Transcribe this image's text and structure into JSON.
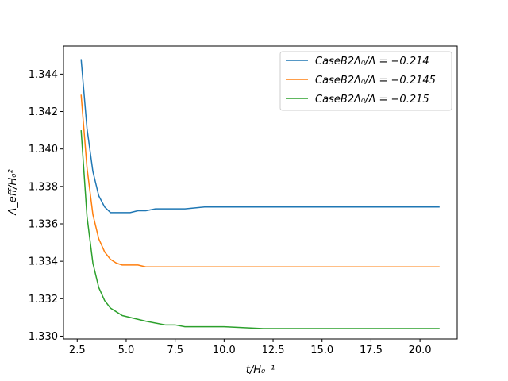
{
  "chart_data": {
    "type": "line",
    "title": "",
    "xlabel": "t/H₀⁻¹",
    "ylabel": "Λ_eff/H₀²",
    "xlim": [
      1.8,
      21.9
    ],
    "ylim": [
      1.32985,
      1.3455
    ],
    "xticks": [
      2.5,
      5.0,
      7.5,
      10.0,
      12.5,
      15.0,
      17.5,
      20.0
    ],
    "xtick_labels": [
      "2.5",
      "5.0",
      "7.5",
      "10.0",
      "12.5",
      "15.0",
      "17.5",
      "20.0"
    ],
    "yticks": [
      1.33,
      1.332,
      1.334,
      1.336,
      1.338,
      1.34,
      1.342,
      1.344
    ],
    "ytick_labels": [
      "1.330",
      "1.332",
      "1.334",
      "1.336",
      "1.338",
      "1.340",
      "1.342",
      "1.344"
    ],
    "grid": false,
    "legend_position": "top-right",
    "series": [
      {
        "name": "CaseB2Λ₀/Λ = −0.214",
        "color": "#1f77b4",
        "x": [
          2.7,
          3.0,
          3.3,
          3.6,
          3.9,
          4.2,
          4.5,
          4.8,
          5.2,
          5.6,
          6.0,
          6.5,
          7.0,
          7.5,
          8.0,
          9.0,
          10.0,
          12.0,
          14.0,
          16.0,
          18.0,
          21.0
        ],
        "y": [
          1.3448,
          1.3411,
          1.3388,
          1.3375,
          1.3369,
          1.3366,
          1.3366,
          1.3366,
          1.3366,
          1.3367,
          1.3367,
          1.3368,
          1.3368,
          1.3368,
          1.3368,
          1.3369,
          1.3369,
          1.3369,
          1.3369,
          1.3369,
          1.3369,
          1.3369
        ]
      },
      {
        "name": "CaseB2Λ₀/Λ = −0.2145",
        "color": "#ff7f0e",
        "x": [
          2.7,
          3.0,
          3.3,
          3.6,
          3.9,
          4.2,
          4.5,
          4.8,
          5.2,
          5.6,
          6.0,
          6.5,
          7.0,
          8.0,
          9.0,
          10.0,
          12.0,
          14.0,
          16.0,
          18.0,
          21.0
        ],
        "y": [
          1.3429,
          1.339,
          1.3365,
          1.3352,
          1.3345,
          1.3341,
          1.3339,
          1.3338,
          1.3338,
          1.3338,
          1.3337,
          1.3337,
          1.3337,
          1.3337,
          1.3337,
          1.3337,
          1.3337,
          1.3337,
          1.3337,
          1.3337,
          1.3337
        ]
      },
      {
        "name": "CaseB2Λ₀/Λ = −0.215",
        "color": "#2ca02c",
        "x": [
          2.7,
          3.0,
          3.3,
          3.6,
          3.9,
          4.2,
          4.5,
          4.8,
          5.2,
          5.6,
          6.0,
          6.5,
          7.0,
          7.5,
          8.0,
          9.0,
          10.0,
          12.0,
          14.0,
          16.0,
          18.0,
          21.0
        ],
        "y": [
          1.341,
          1.3364,
          1.3339,
          1.3326,
          1.3319,
          1.3315,
          1.3313,
          1.3311,
          1.331,
          1.3309,
          1.3308,
          1.3307,
          1.3306,
          1.3306,
          1.3305,
          1.3305,
          1.3305,
          1.3304,
          1.3304,
          1.3304,
          1.3304,
          1.3304
        ]
      }
    ]
  }
}
